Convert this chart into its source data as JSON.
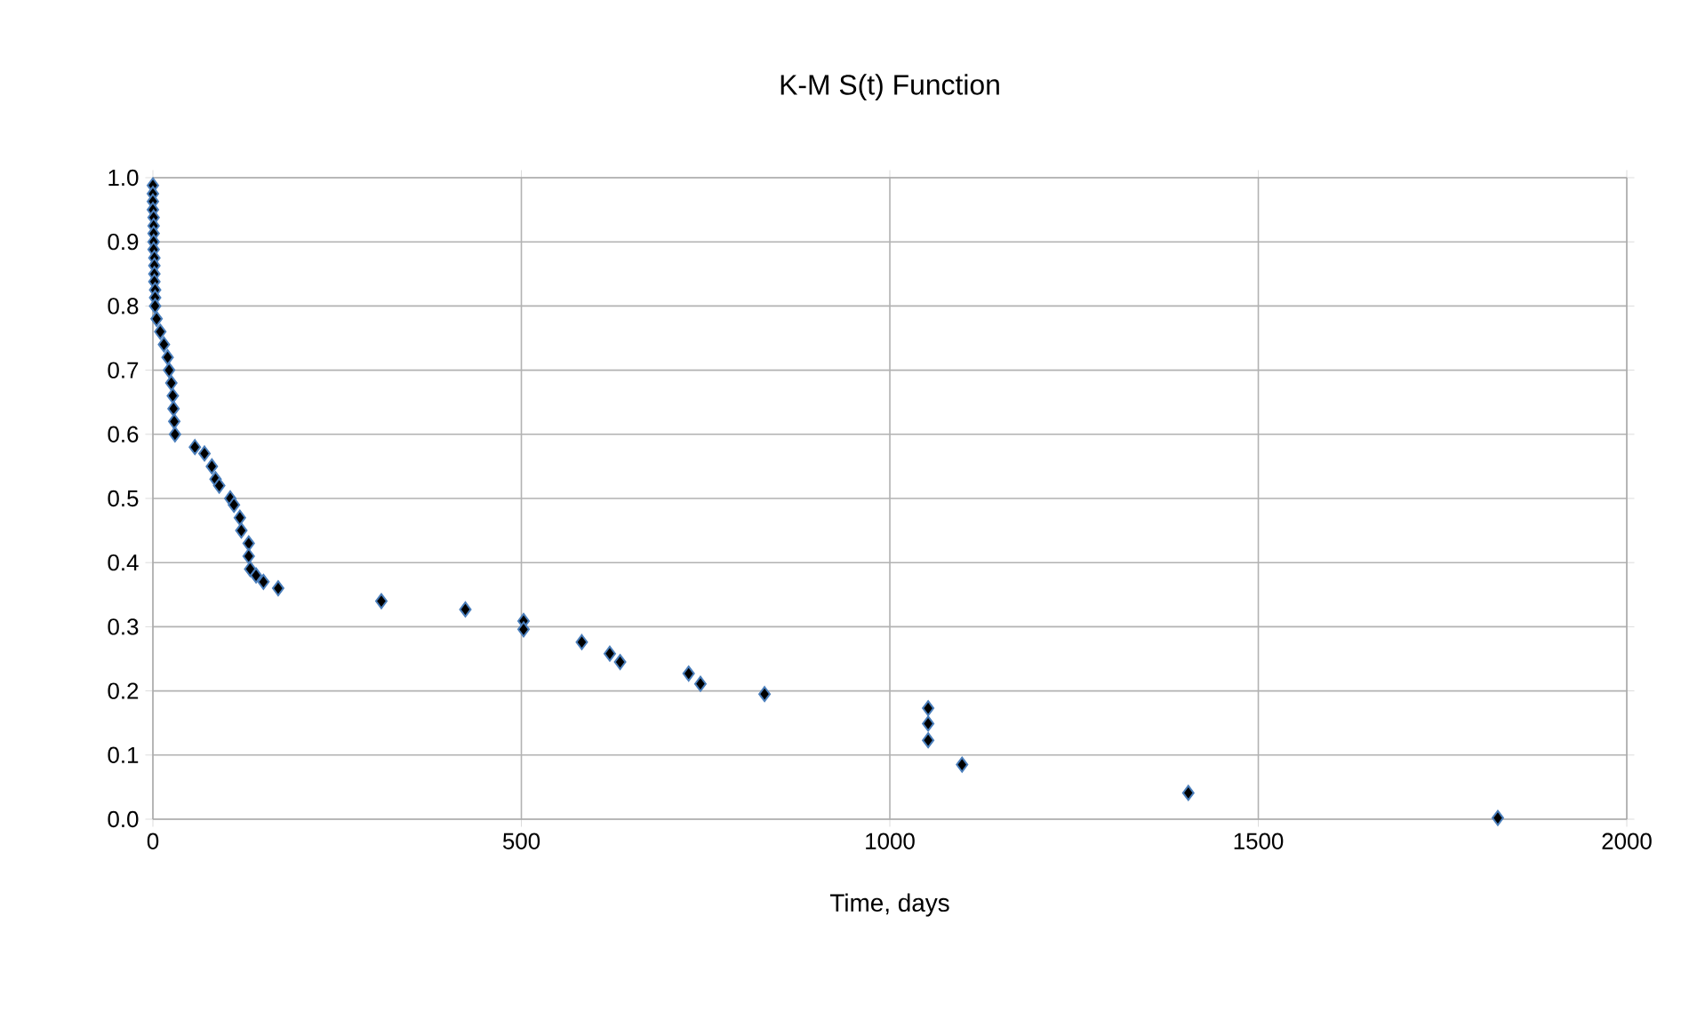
{
  "chart_data": {
    "type": "scatter",
    "title": "K-M S(t) Function",
    "xlabel": "Time, days",
    "x": [
      0,
      0,
      0,
      0,
      1,
      1,
      1,
      1,
      1,
      2,
      2,
      2,
      2,
      3,
      3,
      3,
      5,
      10,
      15,
      20,
      22,
      25,
      27,
      28,
      29,
      30,
      57,
      70,
      80,
      85,
      90,
      105,
      110,
      118,
      120,
      130,
      130,
      132,
      140,
      150,
      170,
      310,
      424,
      503,
      503,
      582,
      620,
      634,
      727,
      743,
      830,
      1052,
      1052,
      1052,
      1098,
      1405,
      1825
    ],
    "series": [
      {
        "color": "#4a7ebb",
        "values": [
          0.988,
          0.975,
          0.963,
          0.95,
          0.938,
          0.925,
          0.913,
          0.9,
          0.888,
          0.875,
          0.863,
          0.85,
          0.838,
          0.825,
          0.813,
          0.8,
          0.78,
          0.76,
          0.74,
          0.72,
          0.7,
          0.68,
          0.66,
          0.64,
          0.62,
          0.6,
          0.58,
          0.57,
          0.55,
          0.53,
          0.52,
          0.5,
          0.49,
          0.47,
          0.45,
          0.43,
          0.41,
          0.39,
          0.38,
          0.37,
          0.36,
          0.34,
          0.327,
          0.309,
          0.296,
          0.276,
          0.258,
          0.245,
          0.227,
          0.211,
          0.195,
          0.173,
          0.149,
          0.123,
          0.085,
          0.041,
          0.002
        ]
      }
    ],
    "marker": "diamond",
    "grid": true,
    "xlim": [
      0,
      2000
    ],
    "xticks": [
      0,
      500,
      1000,
      1500,
      2000
    ],
    "ylim": [
      0,
      1
    ],
    "yticks": [
      {
        "value": 0,
        "label": "0.0"
      },
      {
        "value": 0.1,
        "label": "0.1"
      },
      {
        "value": 0.2,
        "label": "0.2"
      },
      {
        "value": 0.3,
        "label": "0.3"
      },
      {
        "value": 0.4,
        "label": "0.4"
      },
      {
        "value": 0.5,
        "label": "0.5"
      },
      {
        "value": 0.6,
        "label": "0.6"
      },
      {
        "value": 0.7,
        "label": "0.7"
      },
      {
        "value": 0.8,
        "label": "0.8"
      },
      {
        "value": 0.9,
        "label": "0.9"
      },
      {
        "value": 1,
        "label": "1.0"
      }
    ]
  }
}
